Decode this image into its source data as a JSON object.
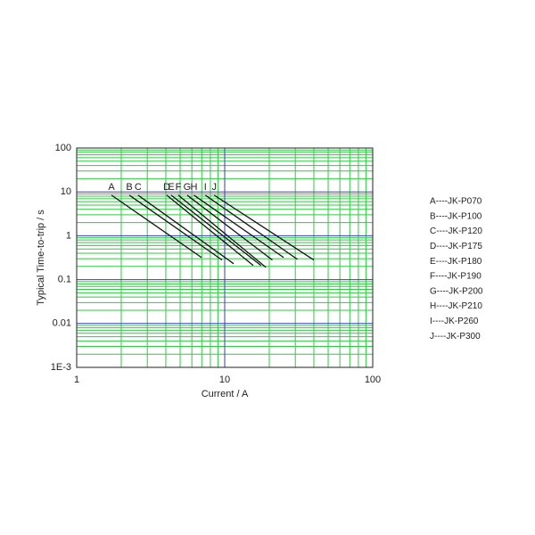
{
  "chart_data": {
    "type": "line",
    "x_label": "Current / A",
    "y_label": "Typical Time-to-trip / s",
    "xscale": "log",
    "yscale": "log",
    "xlim": [
      1,
      100
    ],
    "ylim": [
      0.001,
      100
    ],
    "xticks": [
      1,
      10,
      100
    ],
    "yticks": [
      {
        "value": 0.001,
        "label": "1E-3"
      },
      0.01,
      0.1,
      1,
      10,
      100
    ],
    "grid": true,
    "grid_color": "#2ecc40",
    "major_grid_color": "#3a3ac8",
    "legend": "right",
    "series": [
      {
        "name": "A",
        "label": "A----JK-P070",
        "color": "#111111",
        "x": [
          1.72,
          6.97
        ],
        "values": [
          8.4,
          0.32
        ]
      },
      {
        "name": "B",
        "label": "B----JK-P100",
        "color": "#111111",
        "x": [
          2.27,
          9.6
        ],
        "values": [
          8.4,
          0.28
        ]
      },
      {
        "name": "C",
        "label": "C----JK-P120",
        "color": "#111111",
        "x": [
          2.6,
          11.5
        ],
        "values": [
          8.4,
          0.23
        ]
      },
      {
        "name": "D",
        "label": "D----JK-P175",
        "color": "#111111",
        "x": [
          4.06,
          15.6
        ],
        "values": [
          8.4,
          0.21
        ]
      },
      {
        "name": "E",
        "label": "E----JK-P180",
        "color": "#111111",
        "x": [
          4.35,
          17.6
        ],
        "values": [
          8.4,
          0.21
        ]
      },
      {
        "name": "F",
        "label": "F----JK-P190",
        "color": "#111111",
        "x": [
          4.86,
          19
        ],
        "values": [
          8.4,
          0.19
        ]
      },
      {
        "name": "G",
        "label": "G----JK-P200",
        "color": "#111111",
        "x": [
          5.58,
          21
        ],
        "values": [
          8.4,
          0.28
        ]
      },
      {
        "name": "H",
        "label": "H----JK-P210",
        "color": "#111111",
        "x": [
          6.2,
          25
        ],
        "values": [
          8.4,
          0.32
        ]
      },
      {
        "name": "I",
        "label": "I----JK-P260",
        "color": "#111111",
        "x": [
          7.4,
          31
        ],
        "values": [
          8.4,
          0.29
        ]
      },
      {
        "name": "J",
        "label": "J----JK-P300",
        "color": "#111111",
        "x": [
          8.5,
          40
        ],
        "values": [
          8.4,
          0.28
        ]
      }
    ]
  }
}
